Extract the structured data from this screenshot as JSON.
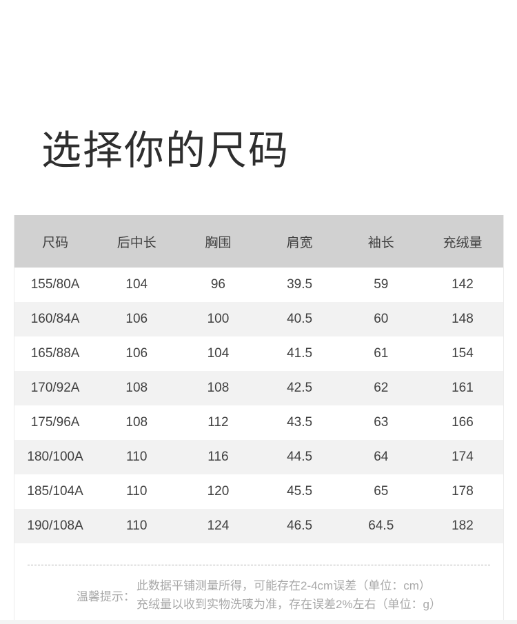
{
  "page": {
    "title": "选择你的尺码"
  },
  "size_table": {
    "headers": [
      "尺码",
      "后中长",
      "胸围",
      "肩宽",
      "袖长",
      "充绒量"
    ],
    "rows": [
      [
        "155/80A",
        "104",
        "96",
        "39.5",
        "59",
        "142"
      ],
      [
        "160/84A",
        "106",
        "100",
        "40.5",
        "60",
        "148"
      ],
      [
        "165/88A",
        "106",
        "104",
        "41.5",
        "61",
        "154"
      ],
      [
        "170/92A",
        "108",
        "108",
        "42.5",
        "62",
        "161"
      ],
      [
        "175/96A",
        "108",
        "112",
        "43.5",
        "63",
        "166"
      ],
      [
        "180/100A",
        "110",
        "116",
        "44.5",
        "64",
        "174"
      ],
      [
        "185/104A",
        "110",
        "120",
        "45.5",
        "65",
        "178"
      ],
      [
        "190/108A",
        "110",
        "124",
        "46.5",
        "64.5",
        "182"
      ]
    ]
  },
  "footer_note": {
    "label": "温馨提示：",
    "lines": [
      "此数据平铺测量所得，可能存在2-4cm误差（单位：cm）",
      "充绒量以收到实物洗唛为准，存在误差2%左右（单位：g）"
    ]
  },
  "colors": {
    "header_bg": "#d1d1d1",
    "stripe_bg": "#f2f2f2",
    "table_text": "#404040",
    "title_text": "#2e2e2e",
    "note_text": "#a8a8a8",
    "divider": "#b0b0b0",
    "panel_border": "#ececec",
    "bottom_strip": "#f4f4f4"
  }
}
